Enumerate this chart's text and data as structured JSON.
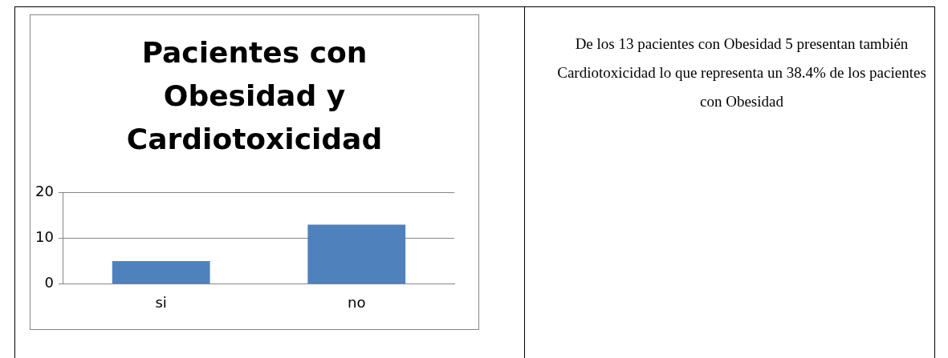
{
  "chart_data": [
    {
      "type": "bar",
      "title": "Pacientes con Obesidad y Cardiotoxicidad",
      "categories": [
        "si",
        "no"
      ],
      "values": [
        5,
        13
      ],
      "color": "#4f81bd",
      "ylim": [
        0,
        20
      ],
      "yticks": [
        0,
        10,
        20
      ],
      "grid": "y"
    },
    {
      "type": "other",
      "annotations": [
        "De los 13 pacientes con Obesidad 5 presentan también Cardiotoxicidad lo que representa un 38.4% de los pacientes con Obesidad"
      ]
    }
  ]
}
